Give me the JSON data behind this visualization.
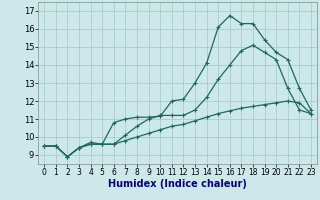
{
  "xlabel": "Humidex (Indice chaleur)",
  "bg_color": "#cce8e8",
  "grid_color": "#aacccc",
  "line_color": "#1a6b5a",
  "xlim": [
    -0.5,
    23.5
  ],
  "ylim": [
    8.5,
    17.5
  ],
  "xticks": [
    0,
    1,
    2,
    3,
    4,
    5,
    6,
    7,
    8,
    9,
    10,
    11,
    12,
    13,
    14,
    15,
    16,
    17,
    18,
    19,
    20,
    21,
    22,
    23
  ],
  "yticks": [
    9,
    10,
    11,
    12,
    13,
    14,
    15,
    16,
    17
  ],
  "line1_x": [
    0,
    1,
    2,
    3,
    4,
    5,
    6,
    7,
    8,
    9,
    10,
    11,
    12,
    13,
    14,
    15,
    16,
    17,
    18,
    19,
    20,
    21,
    22,
    23
  ],
  "line1_y": [
    9.5,
    9.5,
    8.9,
    9.4,
    9.6,
    9.6,
    10.8,
    11.0,
    11.1,
    11.1,
    11.15,
    12.0,
    12.1,
    13.0,
    14.1,
    16.1,
    16.75,
    16.3,
    16.3,
    15.4,
    14.7,
    14.3,
    12.7,
    11.5
  ],
  "line2_x": [
    0,
    1,
    2,
    3,
    4,
    5,
    6,
    7,
    8,
    9,
    10,
    11,
    12,
    13,
    14,
    15,
    16,
    17,
    18,
    19,
    20,
    21,
    22,
    23
  ],
  "line2_y": [
    9.5,
    9.5,
    8.9,
    9.4,
    9.7,
    9.6,
    9.6,
    10.1,
    10.6,
    11.0,
    11.2,
    11.2,
    11.2,
    11.5,
    12.2,
    13.2,
    14.0,
    14.8,
    15.1,
    14.7,
    14.3,
    12.7,
    11.5,
    11.3
  ],
  "line3_x": [
    0,
    1,
    2,
    3,
    4,
    5,
    6,
    7,
    8,
    9,
    10,
    11,
    12,
    13,
    14,
    15,
    16,
    17,
    18,
    19,
    20,
    21,
    22,
    23
  ],
  "line3_y": [
    9.5,
    9.5,
    8.9,
    9.4,
    9.6,
    9.6,
    9.6,
    9.8,
    10.0,
    10.2,
    10.4,
    10.6,
    10.7,
    10.9,
    11.1,
    11.3,
    11.45,
    11.6,
    11.7,
    11.8,
    11.9,
    12.0,
    11.9,
    11.3
  ],
  "xlabel_color": "#00008b",
  "xlabel_fontsize": 7,
  "tick_fontsize": 5.5
}
